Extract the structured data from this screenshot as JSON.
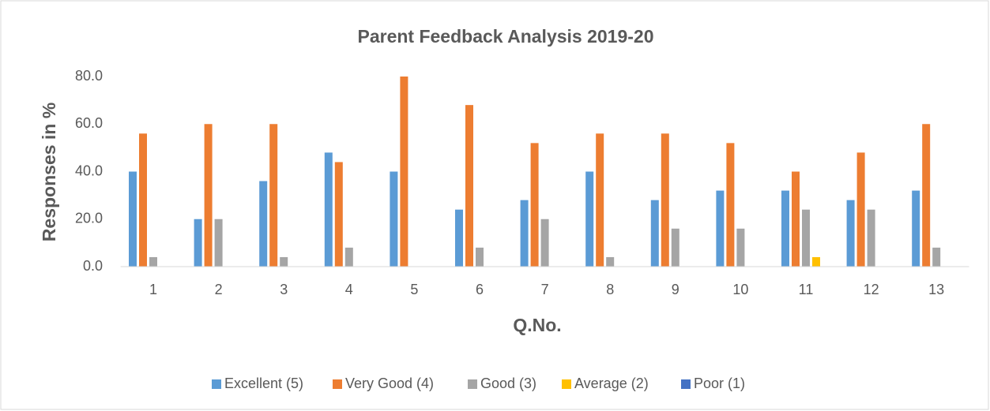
{
  "chart_data": {
    "type": "bar",
    "title": "Parent Feedback Analysis 2019-20",
    "x_label": "Q.No.",
    "y_label": "Responses in %",
    "categories": [
      "1",
      "2",
      "3",
      "4",
      "5",
      "6",
      "7",
      "8",
      "9",
      "10",
      "11",
      "12",
      "13"
    ],
    "series": [
      {
        "name": "Excellent (5)",
        "color": "#5b9bd5",
        "values": [
          40,
          20,
          36,
          48,
          40,
          24,
          28,
          40,
          28,
          32,
          32,
          28,
          32
        ]
      },
      {
        "name": "Very Good (4)",
        "color": "#ed7d31",
        "values": [
          56,
          60,
          60,
          44,
          80,
          68,
          52,
          56,
          56,
          52,
          40,
          48,
          60
        ]
      },
      {
        "name": "Good (3)",
        "color": "#a5a5a5",
        "values": [
          4,
          20,
          4,
          8,
          0,
          8,
          20,
          4,
          16,
          16,
          24,
          24,
          8
        ]
      },
      {
        "name": "Average (2)",
        "color": "#ffc000",
        "values": [
          0,
          0,
          0,
          0,
          0,
          0,
          0,
          0,
          0,
          0,
          4,
          0,
          0
        ]
      },
      {
        "name": "Poor (1)",
        "color": "#4472c4",
        "values": [
          0,
          0,
          0,
          0,
          0,
          0,
          0,
          0,
          0,
          0,
          0,
          0,
          0
        ]
      }
    ],
    "ylim": [
      0,
      80
    ],
    "yticks": [
      {
        "value": 0,
        "label": "0.0"
      },
      {
        "value": 20,
        "label": "20.0"
      },
      {
        "value": 40,
        "label": "40.0"
      },
      {
        "value": 60,
        "label": "60.0"
      },
      {
        "value": 80,
        "label": "80.0"
      }
    ],
    "grid": false,
    "legend": "bottom"
  }
}
